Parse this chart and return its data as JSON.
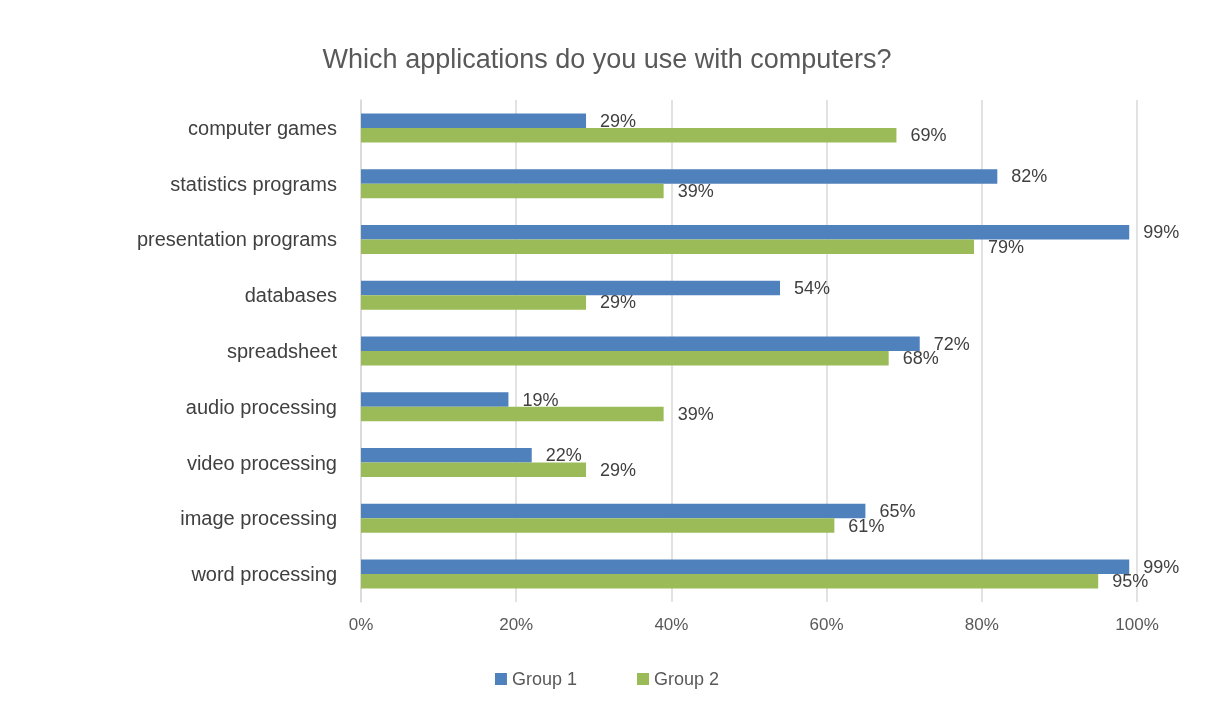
{
  "chart_data": {
    "type": "bar",
    "orientation": "horizontal",
    "title": "Which applications do you use with computers?",
    "categories": [
      "computer games",
      "statistics programs",
      "presentation programs",
      "databases",
      "spreadsheet",
      "audio processing",
      "video processing",
      "image processing",
      "word processing"
    ],
    "series": [
      {
        "name": "Group 1",
        "color": "#4f81bd",
        "values": [
          29,
          82,
          99,
          54,
          72,
          19,
          22,
          65,
          99
        ],
        "value_labels": [
          "29%",
          "82%",
          "99%",
          "54%",
          "72%",
          "19%",
          "22%",
          "65%",
          "99%"
        ]
      },
      {
        "name": "Group 2",
        "color": "#9bbb59",
        "values": [
          69,
          39,
          79,
          29,
          68,
          39,
          29,
          61,
          95
        ],
        "value_labels": [
          "69%",
          "39%",
          "79%",
          "29%",
          "68%",
          "39%",
          "29%",
          "61%",
          "95%"
        ]
      }
    ],
    "xlim": [
      0,
      100
    ],
    "xticks": [
      {
        "value": 0,
        "label": "0%"
      },
      {
        "value": 20,
        "label": "20%"
      },
      {
        "value": 40,
        "label": "40%"
      },
      {
        "value": 60,
        "label": "60%"
      },
      {
        "value": 80,
        "label": "80%"
      },
      {
        "value": 100,
        "label": "100%"
      }
    ],
    "grid": "x",
    "legend": "bottom"
  }
}
